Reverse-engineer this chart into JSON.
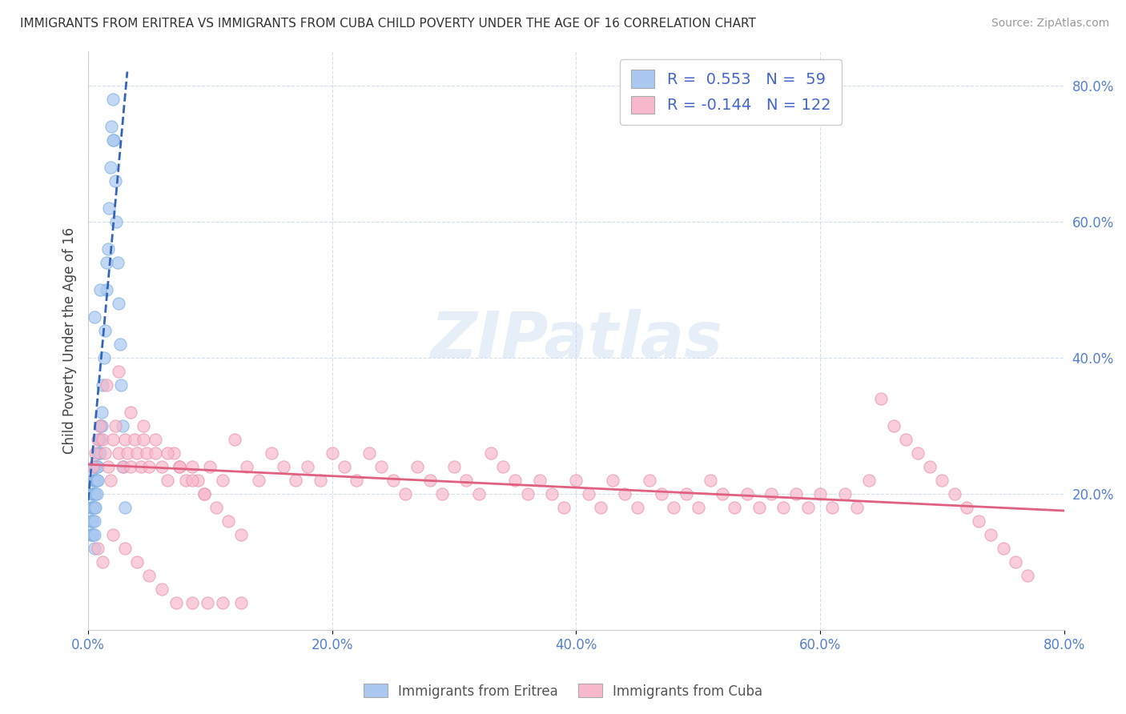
{
  "title": "IMMIGRANTS FROM ERITREA VS IMMIGRANTS FROM CUBA CHILD POVERTY UNDER THE AGE OF 16 CORRELATION CHART",
  "source": "Source: ZipAtlas.com",
  "ylabel": "Child Poverty Under the Age of 16",
  "xmin": 0.0,
  "xmax": 0.8,
  "ymin": 0.0,
  "ymax": 0.85,
  "x_tick_labels": [
    "0.0%",
    "20.0%",
    "40.0%",
    "60.0%",
    "80.0%"
  ],
  "x_tick_vals": [
    0.0,
    0.2,
    0.4,
    0.6,
    0.8
  ],
  "y_tick_labels": [
    "20.0%",
    "40.0%",
    "60.0%",
    "80.0%"
  ],
  "y_tick_vals": [
    0.2,
    0.4,
    0.6,
    0.8
  ],
  "eritrea_color": "#aac8f0",
  "eritrea_edge": "#7aaee0",
  "cuba_color": "#f8b8cc",
  "cuba_edge": "#e890aa",
  "eritrea_R": 0.553,
  "eritrea_N": 59,
  "cuba_R": -0.144,
  "cuba_N": 122,
  "legend_label_eritrea": "Immigrants from Eritrea",
  "legend_label_cuba": "Immigrants from Cuba",
  "watermark": "ZIPatlas",
  "eritrea_line_x": [
    0.0,
    0.032
  ],
  "eritrea_line_y": [
    0.19,
    0.82
  ],
  "cuba_line_x": [
    0.0,
    0.8
  ],
  "cuba_line_y": [
    0.243,
    0.175
  ],
  "eritrea_scatter_x": [
    0.002,
    0.002,
    0.002,
    0.003,
    0.003,
    0.003,
    0.003,
    0.004,
    0.004,
    0.004,
    0.004,
    0.004,
    0.005,
    0.005,
    0.005,
    0.005,
    0.005,
    0.005,
    0.005,
    0.006,
    0.006,
    0.006,
    0.006,
    0.007,
    0.007,
    0.007,
    0.008,
    0.008,
    0.008,
    0.009,
    0.009,
    0.01,
    0.01,
    0.01,
    0.011,
    0.011,
    0.012,
    0.013,
    0.014,
    0.015,
    0.016,
    0.017,
    0.018,
    0.019,
    0.02,
    0.021,
    0.022,
    0.023,
    0.024,
    0.025,
    0.026,
    0.027,
    0.028,
    0.029,
    0.03,
    0.005,
    0.01,
    0.015,
    0.02
  ],
  "eritrea_scatter_y": [
    0.18,
    0.16,
    0.14,
    0.2,
    0.18,
    0.16,
    0.14,
    0.22,
    0.2,
    0.18,
    0.16,
    0.14,
    0.24,
    0.22,
    0.2,
    0.18,
    0.16,
    0.14,
    0.12,
    0.24,
    0.22,
    0.2,
    0.18,
    0.24,
    0.22,
    0.2,
    0.26,
    0.24,
    0.22,
    0.28,
    0.26,
    0.3,
    0.28,
    0.26,
    0.32,
    0.3,
    0.36,
    0.4,
    0.44,
    0.5,
    0.56,
    0.62,
    0.68,
    0.74,
    0.78,
    0.72,
    0.66,
    0.6,
    0.54,
    0.48,
    0.42,
    0.36,
    0.3,
    0.24,
    0.18,
    0.46,
    0.5,
    0.54,
    0.72
  ],
  "cuba_scatter_x": [
    0.004,
    0.006,
    0.008,
    0.01,
    0.012,
    0.014,
    0.016,
    0.018,
    0.02,
    0.022,
    0.025,
    0.028,
    0.03,
    0.032,
    0.035,
    0.038,
    0.04,
    0.043,
    0.045,
    0.048,
    0.05,
    0.055,
    0.06,
    0.065,
    0.07,
    0.075,
    0.08,
    0.085,
    0.09,
    0.095,
    0.1,
    0.11,
    0.12,
    0.13,
    0.14,
    0.15,
    0.16,
    0.17,
    0.18,
    0.19,
    0.2,
    0.21,
    0.22,
    0.23,
    0.24,
    0.25,
    0.26,
    0.27,
    0.28,
    0.29,
    0.3,
    0.31,
    0.32,
    0.33,
    0.34,
    0.35,
    0.36,
    0.37,
    0.38,
    0.39,
    0.4,
    0.41,
    0.42,
    0.43,
    0.44,
    0.45,
    0.46,
    0.47,
    0.48,
    0.49,
    0.5,
    0.51,
    0.52,
    0.53,
    0.54,
    0.55,
    0.56,
    0.57,
    0.58,
    0.59,
    0.6,
    0.61,
    0.62,
    0.63,
    0.64,
    0.65,
    0.66,
    0.67,
    0.68,
    0.69,
    0.7,
    0.71,
    0.72,
    0.73,
    0.74,
    0.75,
    0.76,
    0.77,
    0.015,
    0.025,
    0.035,
    0.045,
    0.055,
    0.065,
    0.075,
    0.085,
    0.095,
    0.105,
    0.115,
    0.125,
    0.008,
    0.012,
    0.02,
    0.03,
    0.04,
    0.05,
    0.06,
    0.072,
    0.085,
    0.098,
    0.11,
    0.125
  ],
  "cuba_scatter_y": [
    0.24,
    0.26,
    0.28,
    0.3,
    0.28,
    0.26,
    0.24,
    0.22,
    0.28,
    0.3,
    0.26,
    0.24,
    0.28,
    0.26,
    0.24,
    0.28,
    0.26,
    0.24,
    0.28,
    0.26,
    0.24,
    0.26,
    0.24,
    0.22,
    0.26,
    0.24,
    0.22,
    0.24,
    0.22,
    0.2,
    0.24,
    0.22,
    0.28,
    0.24,
    0.22,
    0.26,
    0.24,
    0.22,
    0.24,
    0.22,
    0.26,
    0.24,
    0.22,
    0.26,
    0.24,
    0.22,
    0.2,
    0.24,
    0.22,
    0.2,
    0.24,
    0.22,
    0.2,
    0.26,
    0.24,
    0.22,
    0.2,
    0.22,
    0.2,
    0.18,
    0.22,
    0.2,
    0.18,
    0.22,
    0.2,
    0.18,
    0.22,
    0.2,
    0.18,
    0.2,
    0.18,
    0.22,
    0.2,
    0.18,
    0.2,
    0.18,
    0.2,
    0.18,
    0.2,
    0.18,
    0.2,
    0.18,
    0.2,
    0.18,
    0.22,
    0.34,
    0.3,
    0.28,
    0.26,
    0.24,
    0.22,
    0.2,
    0.18,
    0.16,
    0.14,
    0.12,
    0.1,
    0.08,
    0.36,
    0.38,
    0.32,
    0.3,
    0.28,
    0.26,
    0.24,
    0.22,
    0.2,
    0.18,
    0.16,
    0.14,
    0.12,
    0.1,
    0.14,
    0.12,
    0.1,
    0.08,
    0.06,
    0.04,
    0.04,
    0.04,
    0.04,
    0.04
  ]
}
